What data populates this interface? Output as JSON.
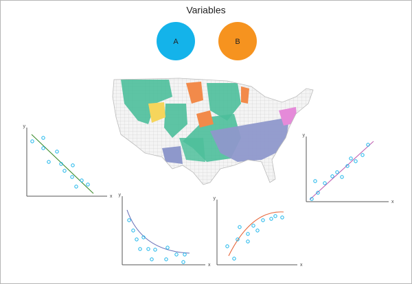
{
  "title": "Variables",
  "variables": [
    {
      "label": "A"
    },
    {
      "label": "B"
    }
  ],
  "plots": [
    {
      "x_label": "x",
      "y_label": "y"
    },
    {
      "x_label": "x",
      "y_label": "y"
    },
    {
      "x_label": "x",
      "y_label": "y"
    },
    {
      "x_label": "x",
      "y_label": "y"
    }
  ]
}
